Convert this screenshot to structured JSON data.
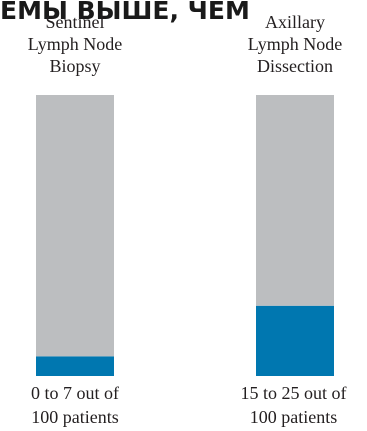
{
  "overlay_text": "ЕМЫ ВЫШЕ, ЧЕМ",
  "chart_data": {
    "type": "bar",
    "orientation": "vertical",
    "stacked": true,
    "categories": [
      {
        "title_lines": [
          "Sentinel",
          "Lymph Node",
          "Biopsy"
        ],
        "footer_lines": [
          "0 to 7 out of",
          "100 patients"
        ]
      },
      {
        "title_lines": [
          "Axillary",
          "Lymph Node",
          "Dissection"
        ],
        "footer_lines": [
          "15 to 25 out of",
          "100 patients"
        ]
      }
    ],
    "series": [
      {
        "values": [
          7,
          25
        ],
        "color": "#0077b0"
      },
      {
        "values": [
          93,
          75
        ],
        "color": "#bcbec0"
      }
    ],
    "ylim": [
      0,
      100
    ],
    "grid": false,
    "legend": "none"
  }
}
